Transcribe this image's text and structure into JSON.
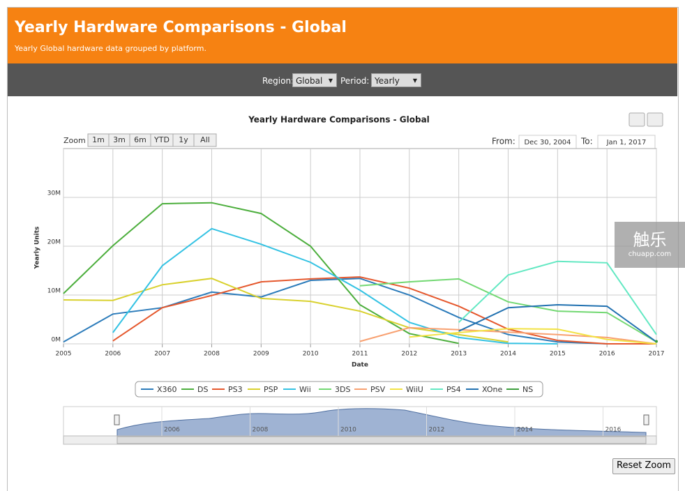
{
  "header": {
    "title": "Yearly Hardware Comparisons - Global",
    "subtitle": "Yearly Global hardware data grouped by platform."
  },
  "controls": {
    "region_label": "Region:",
    "region": "Global",
    "period_label": "Period:",
    "period": "Yearly"
  },
  "zoom": {
    "label": "Zoom",
    "buttons": [
      "1m",
      "3m",
      "6m",
      "YTD",
      "1y",
      "All"
    ]
  },
  "range": {
    "from_label": "From:",
    "from": "Dec 30, 2004",
    "to_label": "To:",
    "to": "Jan 1, 2017"
  },
  "navigator": {
    "labels": [
      "2006",
      "2008",
      "2010",
      "2012",
      "2014",
      "2016"
    ]
  },
  "reset_button": "Reset Zoom",
  "watermark": {
    "name": "触乐",
    "site": "chuapp.com"
  },
  "chart_data": {
    "type": "line",
    "title": "Yearly Hardware Comparisons - Global",
    "x_label": "Date",
    "y_label": "Yearly Units",
    "xlim": [
      2005,
      2017
    ],
    "xticks": [
      2005,
      2006,
      2007,
      2008,
      2009,
      2010,
      2011,
      2012,
      2013,
      2014,
      2015,
      2016,
      2017
    ],
    "ylim": [
      0,
      40
    ],
    "yticks": [
      {
        "value": 0,
        "label": "0M"
      },
      {
        "value": 10,
        "label": "10M"
      },
      {
        "value": 20,
        "label": "20M"
      },
      {
        "value": 30,
        "label": "30M"
      }
    ],
    "grid": true,
    "series": [
      {
        "name": "X360",
        "color": "#2b7bba",
        "x": [
          2005,
          2006,
          2007,
          2008,
          2009,
          2010,
          2011,
          2012,
          2013,
          2014,
          2015,
          2016
        ],
        "values": [
          0.4,
          6.1,
          7.4,
          10.6,
          9.6,
          13,
          13.4,
          10,
          5.4,
          1.9,
          0.4,
          0
        ]
      },
      {
        "name": "DS",
        "color": "#4cae3c",
        "x": [
          2005,
          2006,
          2007,
          2008,
          2009,
          2010,
          2011,
          2012,
          2013
        ],
        "values": [
          10.3,
          20.1,
          28.7,
          28.9,
          26.7,
          20,
          8,
          2.1,
          0.1
        ]
      },
      {
        "name": "PS3",
        "color": "#e5572c",
        "x": [
          2006,
          2007,
          2008,
          2009,
          2010,
          2011,
          2012,
          2013,
          2014,
          2015,
          2016,
          2017
        ],
        "values": [
          0.6,
          7.4,
          9.9,
          12.7,
          13.3,
          13.7,
          11.4,
          7.7,
          3,
          0.7,
          0,
          0
        ]
      },
      {
        "name": "PSP",
        "color": "#d9d12e",
        "x": [
          2005,
          2006,
          2007,
          2008,
          2009,
          2010,
          2011,
          2012,
          2013,
          2014
        ],
        "values": [
          9,
          8.9,
          12.1,
          13.4,
          9.3,
          8.7,
          6.7,
          3.3,
          1.9,
          0.4
        ]
      },
      {
        "name": "Wii",
        "color": "#33c2e3",
        "x": [
          2006,
          2007,
          2008,
          2009,
          2010,
          2011,
          2012,
          2013,
          2014,
          2015
        ],
        "values": [
          2.3,
          16,
          23.6,
          20.4,
          16.7,
          11,
          4.4,
          1.3,
          0.1,
          0
        ]
      },
      {
        "name": "3DS",
        "color": "#72d872",
        "x": [
          2011,
          2012,
          2013,
          2014,
          2015,
          2016,
          2017
        ],
        "values": [
          11.9,
          12.7,
          13.3,
          8.6,
          6.7,
          6.4,
          0.4
        ]
      },
      {
        "name": "PSV",
        "color": "#f8a070",
        "x": [
          2011,
          2012,
          2013,
          2014,
          2015,
          2016,
          2017
        ],
        "values": [
          0.5,
          3.3,
          2.9,
          2.4,
          1.9,
          1.3,
          0
        ]
      },
      {
        "name": "WiiU",
        "color": "#f2e244",
        "x": [
          2012,
          2013,
          2014,
          2015,
          2016,
          2017
        ],
        "values": [
          1.4,
          2.3,
          3.1,
          3,
          0.9,
          0
        ]
      },
      {
        "name": "PS4",
        "color": "#62e8c2",
        "x": [
          2013,
          2014,
          2015,
          2016,
          2017
        ],
        "values": [
          4.4,
          14.1,
          16.9,
          16.6,
          1.9
        ]
      },
      {
        "name": "XOne",
        "color": "#2171b0",
        "x": [
          2013,
          2014,
          2015,
          2016,
          2017
        ],
        "values": [
          2.6,
          7.4,
          8,
          7.7,
          0.4
        ]
      },
      {
        "name": "NS",
        "color": "#3c9e3c",
        "x": [
          2017
        ],
        "values": [
          0.5
        ]
      }
    ]
  }
}
